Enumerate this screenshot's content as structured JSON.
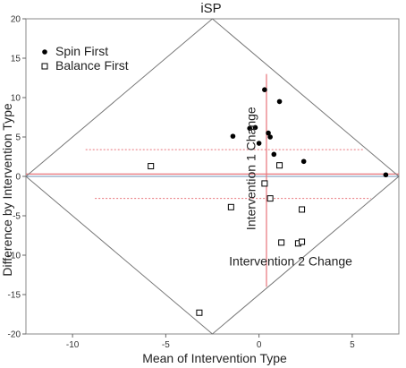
{
  "chart_data": {
    "type": "scatter",
    "title": "iSP",
    "xlabel": "Mean of Intervention Type",
    "ylabel": "Difference by Intervention Type",
    "xlim": [
      -12.5,
      7.5
    ],
    "ylim": [
      -20,
      20
    ],
    "x_ticks": [
      -10,
      -5,
      0,
      5
    ],
    "y_ticks": [
      -20,
      -15,
      -10,
      -5,
      0,
      5,
      10,
      15,
      20
    ],
    "x_tick_labels": [
      "-10",
      "-5",
      "0",
      "5"
    ],
    "y_tick_labels": [
      "-20",
      "-15",
      "-10",
      "-5",
      "0",
      "5",
      "10",
      "15",
      "20"
    ],
    "grid": false,
    "legend_position": "top-left",
    "series": [
      {
        "name": "Spin First",
        "marker": "filled-circle",
        "color": "#000000",
        "points": [
          [
            -1.4,
            5.1
          ],
          [
            -0.5,
            6.1
          ],
          [
            -0.2,
            6.2
          ],
          [
            0.0,
            4.2
          ],
          [
            0.3,
            11.0
          ],
          [
            0.5,
            5.5
          ],
          [
            0.6,
            5.0
          ],
          [
            0.8,
            2.8
          ],
          [
            1.1,
            9.5
          ],
          [
            2.4,
            1.9
          ],
          [
            6.8,
            0.2
          ]
        ]
      },
      {
        "name": "Balance First",
        "marker": "open-square",
        "color": "#000000",
        "points": [
          [
            -5.8,
            1.3
          ],
          [
            1.1,
            1.4
          ],
          [
            0.3,
            -0.9
          ],
          [
            0.6,
            -2.8
          ],
          [
            -1.5,
            -3.9
          ],
          [
            2.3,
            -4.2
          ],
          [
            1.2,
            -8.4
          ],
          [
            2.1,
            -8.5
          ],
          [
            2.3,
            -8.3
          ],
          [
            -3.2,
            -17.3
          ]
        ]
      }
    ],
    "reference_lines": {
      "zero_line_y": 0,
      "mean_difference_y": 0.3,
      "upper_limit_y": 3.4,
      "lower_limit_y": -2.8,
      "vertical_mean_x": 0.4,
      "vertical_extent": [
        -14,
        13
      ]
    },
    "annotations": [
      {
        "text": "Intervention 1 Change",
        "x": -0.2,
        "y": 1,
        "rotation": -90
      },
      {
        "text": "Intervention 2 Change",
        "x": 1.7,
        "y": -11.3,
        "rotation": 0
      }
    ],
    "colors": {
      "reference_red": "#e8747a",
      "zero_line": "#6f8fb3",
      "diamond": "#777777",
      "frame": "#888888"
    }
  }
}
